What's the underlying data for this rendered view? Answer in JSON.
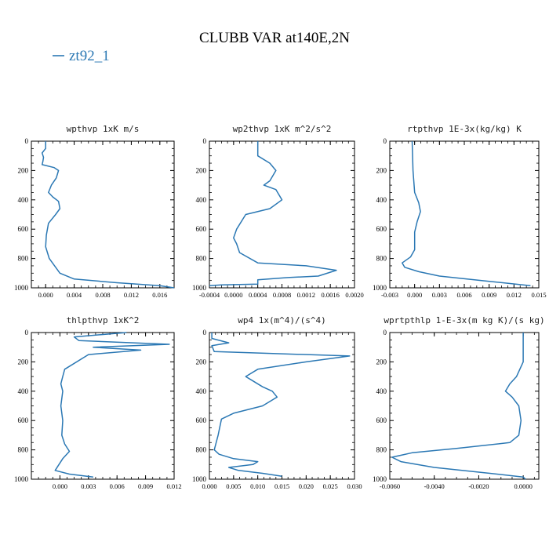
{
  "figure": {
    "title": "CLUBB VAR at140E,2N",
    "legend_label": "zt92_1",
    "line_color": "#2b78b4"
  },
  "chart_data": [
    {
      "type": "line",
      "title": "wpthvp   1xK m/s",
      "xlim": [
        -0.002,
        0.018
      ],
      "ylim": [
        1000,
        0
      ],
      "xticks": [
        0.0,
        0.004,
        0.008,
        0.012,
        0.016
      ],
      "xtick_labels": [
        "0.000",
        "0.004",
        "0.008",
        "0.012",
        "0.016"
      ],
      "yticks": [
        0,
        200,
        400,
        600,
        800,
        1000
      ],
      "ytick_labels": [
        "0",
        "200",
        "400",
        "600",
        "800",
        "1000"
      ],
      "series": [
        {
          "x": [
            0.0,
            0.0,
            -0.0005,
            -0.0003,
            -0.0004,
            -0.0005,
            0.0012,
            0.0018,
            0.0015,
            0.0008,
            0.0004,
            0.001,
            0.0018,
            0.002,
            0.0014,
            0.0004,
            0.0001,
            0.0,
            0.0005,
            0.002,
            0.004,
            0.01,
            0.016,
            0.018
          ],
          "y": [
            0,
            50,
            80,
            110,
            140,
            160,
            180,
            200,
            250,
            300,
            350,
            380,
            410,
            460,
            500,
            560,
            640,
            720,
            800,
            900,
            940,
            965,
            985,
            1000
          ]
        }
      ]
    },
    {
      "type": "line",
      "title": "wp2thvp   1xK m^2/s^2",
      "xlim": [
        -0.0004,
        0.002
      ],
      "ylim": [
        1000,
        0
      ],
      "xticks": [
        -0.0004,
        0.0,
        0.0004,
        0.0008,
        0.0012,
        0.0016,
        0.002
      ],
      "xtick_labels": [
        "-0.0004",
        "0.0000",
        "0.0004",
        "0.0008",
        "0.0012",
        "0.0016",
        "0.0020"
      ],
      "yticks": [
        0,
        200,
        400,
        600,
        800,
        1000
      ],
      "ytick_labels": [
        "0",
        "200",
        "400",
        "600",
        "800",
        "1000"
      ],
      "series": [
        {
          "x": [
            0.0004,
            0.0004,
            0.0006,
            0.0007,
            0.0006,
            0.0005,
            0.0007,
            0.0008,
            0.0006,
            0.0002,
            5e-05,
            0.0,
            5e-05,
            0.0001,
            0.0004,
            0.0012,
            0.0017,
            0.0014,
            0.0009,
            0.0004,
            0.0004,
            -0.0002,
            -0.0004
          ],
          "y": [
            0,
            100,
            150,
            200,
            270,
            300,
            330,
            400,
            460,
            500,
            600,
            660,
            700,
            760,
            830,
            850,
            880,
            920,
            930,
            945,
            975,
            980,
            985
          ]
        }
      ]
    },
    {
      "type": "line",
      "title": "rtpthvp   1E-3x(kg/kg) K",
      "xlim": [
        -0.003,
        0.015
      ],
      "ylim": [
        1000,
        0
      ],
      "xticks": [
        -0.003,
        0.0,
        0.003,
        0.006,
        0.009,
        0.012,
        0.015
      ],
      "xtick_labels": [
        "-0.003",
        "0.000",
        "0.003",
        "0.006",
        "0.009",
        "0.012",
        "0.015"
      ],
      "yticks": [
        0,
        200,
        400,
        600,
        800,
        1000
      ],
      "ytick_labels": [
        "0",
        "200",
        "400",
        "600",
        "800",
        "1000"
      ],
      "series": [
        {
          "x": [
            -0.0003,
            -0.0002,
            0.0,
            0.0005,
            0.0007,
            0.0003,
            0.0,
            0.0,
            -0.0005,
            -0.0015,
            -0.0012,
            0.0005,
            0.003,
            0.008,
            0.014
          ],
          "y": [
            0,
            200,
            350,
            420,
            480,
            550,
            620,
            740,
            790,
            830,
            860,
            890,
            920,
            950,
            985
          ]
        }
      ]
    },
    {
      "type": "line",
      "title": "thlpthvp   1xK^2",
      "xlim": [
        -0.003,
        0.012
      ],
      "ylim": [
        1000,
        0
      ],
      "xticks": [
        0.0,
        0.003,
        0.006,
        0.009,
        0.012
      ],
      "xtick_labels": [
        "0.000",
        "0.003",
        "0.006",
        "0.009",
        "0.012"
      ],
      "yticks": [
        0,
        200,
        400,
        600,
        800,
        1000
      ],
      "ytick_labels": [
        "0",
        "200",
        "400",
        "600",
        "800",
        "1000"
      ],
      "series": [
        {
          "x": [
            0.007,
            0.0015,
            0.002,
            0.0115,
            0.0035,
            0.0085,
            0.003,
            0.0005,
            0.0003,
            0.0001,
            0.0003,
            0.0001,
            0.0003,
            0.0002,
            0.0005,
            0.001,
            0.0003,
            -0.0005,
            0.001,
            0.0035
          ],
          "y": [
            0,
            30,
            55,
            80,
            100,
            120,
            150,
            250,
            300,
            350,
            400,
            500,
            600,
            700,
            760,
            810,
            860,
            940,
            965,
            985
          ]
        }
      ]
    },
    {
      "type": "line",
      "title": "wp4   1x(m^4)/(s^4)",
      "xlim": [
        0.0,
        0.03
      ],
      "ylim": [
        1000,
        0
      ],
      "xticks": [
        0.0,
        0.005,
        0.01,
        0.015,
        0.02,
        0.025,
        0.03
      ],
      "xtick_labels": [
        "0.000",
        "0.005",
        "0.010",
        "0.015",
        "0.020",
        "0.025",
        "0.030"
      ],
      "yticks": [
        0,
        200,
        400,
        600,
        800,
        1000
      ],
      "ytick_labels": [
        "0",
        "200",
        "400",
        "600",
        "800",
        "1000"
      ],
      "series": [
        {
          "x": [
            0.0005,
            0.0005,
            0.004,
            0.0005,
            0.001,
            0.029,
            0.02,
            0.01,
            0.0075,
            0.0085,
            0.011,
            0.013,
            0.014,
            0.011,
            0.005,
            0.0025,
            0.0018,
            0.001,
            0.002,
            0.005,
            0.01,
            0.009,
            0.004,
            0.006,
            0.011,
            0.015
          ],
          "y": [
            0,
            40,
            70,
            90,
            130,
            160,
            200,
            250,
            300,
            320,
            370,
            400,
            440,
            500,
            550,
            590,
            700,
            800,
            830,
            860,
            880,
            900,
            920,
            940,
            960,
            980
          ]
        }
      ]
    },
    {
      "type": "line",
      "title": "wprtpthlp   1-E-3x(m kg K)/(s kg)",
      "xlim": [
        -0.006,
        0.0007
      ],
      "ylim": [
        1000,
        0
      ],
      "xticks": [
        -0.006,
        -0.004,
        -0.002,
        0.0
      ],
      "xtick_labels": [
        "-0.0060",
        "-0.0040",
        "-0.0020",
        "0.0000"
      ],
      "yticks": [
        0,
        200,
        400,
        600,
        800,
        1000
      ],
      "ytick_labels": [
        "0",
        "200",
        "400",
        "600",
        "800",
        "1000"
      ],
      "series": [
        {
          "x": [
            0.0,
            0.0,
            -0.0003,
            -0.0006,
            -0.0008,
            -0.0005,
            -0.0002,
            -0.0001,
            -0.0002,
            -0.0006,
            -0.003,
            -0.005,
            -0.0059,
            -0.0055,
            -0.004,
            -0.0015,
            0.0,
            0.0001
          ],
          "y": [
            0,
            200,
            300,
            350,
            400,
            440,
            500,
            600,
            700,
            750,
            790,
            820,
            850,
            880,
            920,
            960,
            985,
            1000
          ]
        }
      ]
    }
  ]
}
